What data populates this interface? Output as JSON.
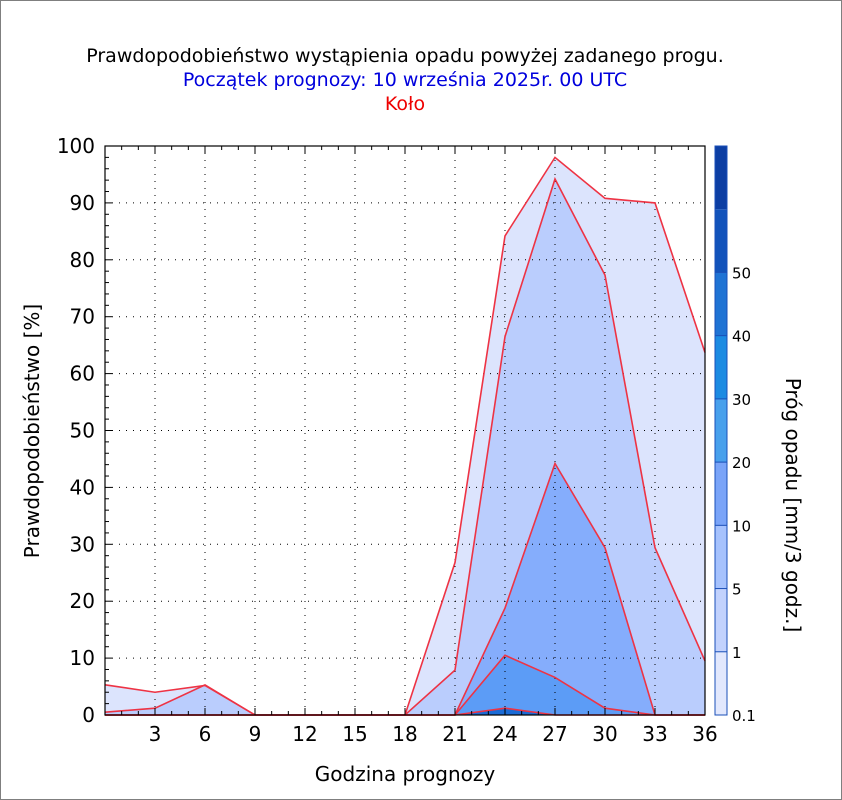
{
  "title": "Prawdopodobieństwo wystąpienia opadu powyżej zadanego progu.",
  "subtitle": "Początek prognozy: 10 września 2025r. 00 UTC",
  "location": "Koło",
  "colors": {
    "title": "#000000",
    "subtitle": "#0000dd",
    "location": "#ee0000",
    "series_line": "#ee3344",
    "grid": "#000000"
  },
  "chart_data": {
    "type": "area",
    "xlabel": "Godzina prognozy",
    "ylabel": "Prawdopodobieństwo [%]",
    "xlim": [
      0,
      36
    ],
    "ylim": [
      0,
      100
    ],
    "x_ticks": [
      3,
      6,
      9,
      12,
      15,
      18,
      21,
      24,
      27,
      30,
      33,
      36
    ],
    "y_ticks": [
      0,
      10,
      20,
      30,
      40,
      50,
      60,
      70,
      80,
      90,
      100
    ],
    "grid": true,
    "x": [
      0,
      3,
      6,
      9,
      12,
      15,
      18,
      21,
      24,
      27,
      30,
      33,
      36
    ],
    "series": [
      {
        "name": "0.1",
        "color": "#dce4fd",
        "values": [
          5.3,
          4.0,
          5.2,
          0,
          0,
          0,
          0,
          26.8,
          84.2,
          98.0,
          90.8,
          90.0,
          63.7
        ]
      },
      {
        "name": "1",
        "color": "#bacdfd",
        "values": [
          0.5,
          1.2,
          5.3,
          0,
          0,
          0,
          0,
          7.9,
          66.5,
          94.2,
          77.3,
          29.4,
          9.5
        ]
      },
      {
        "name": "5",
        "color": "#85adfc",
        "values": [
          0,
          0,
          0,
          0,
          0,
          0,
          0,
          0,
          18.8,
          44.2,
          29.4,
          0,
          0
        ]
      },
      {
        "name": "10",
        "color": "#5c9cf6",
        "values": [
          0,
          0,
          0,
          0,
          0,
          0,
          0,
          0,
          10.5,
          6.6,
          1.2,
          0,
          0
        ]
      },
      {
        "name": "20",
        "color": "#1a6bd6",
        "values": [
          0,
          0,
          0,
          0,
          0,
          0,
          0,
          0,
          1.2,
          0,
          0,
          0,
          0
        ]
      }
    ],
    "colorbar": {
      "label": "Próg opadu [mm/3 godz.]",
      "tick_labels": [
        "0.1",
        "1",
        "5",
        "10",
        "20",
        "30",
        "40",
        "50"
      ],
      "bands": [
        "#e2e8fd",
        "#c2d2fd",
        "#a6c2fd",
        "#7aa4f8",
        "#48a0ec",
        "#1c8be2",
        "#1f73d4",
        "#1253bb",
        "#0c3ea3"
      ]
    }
  }
}
